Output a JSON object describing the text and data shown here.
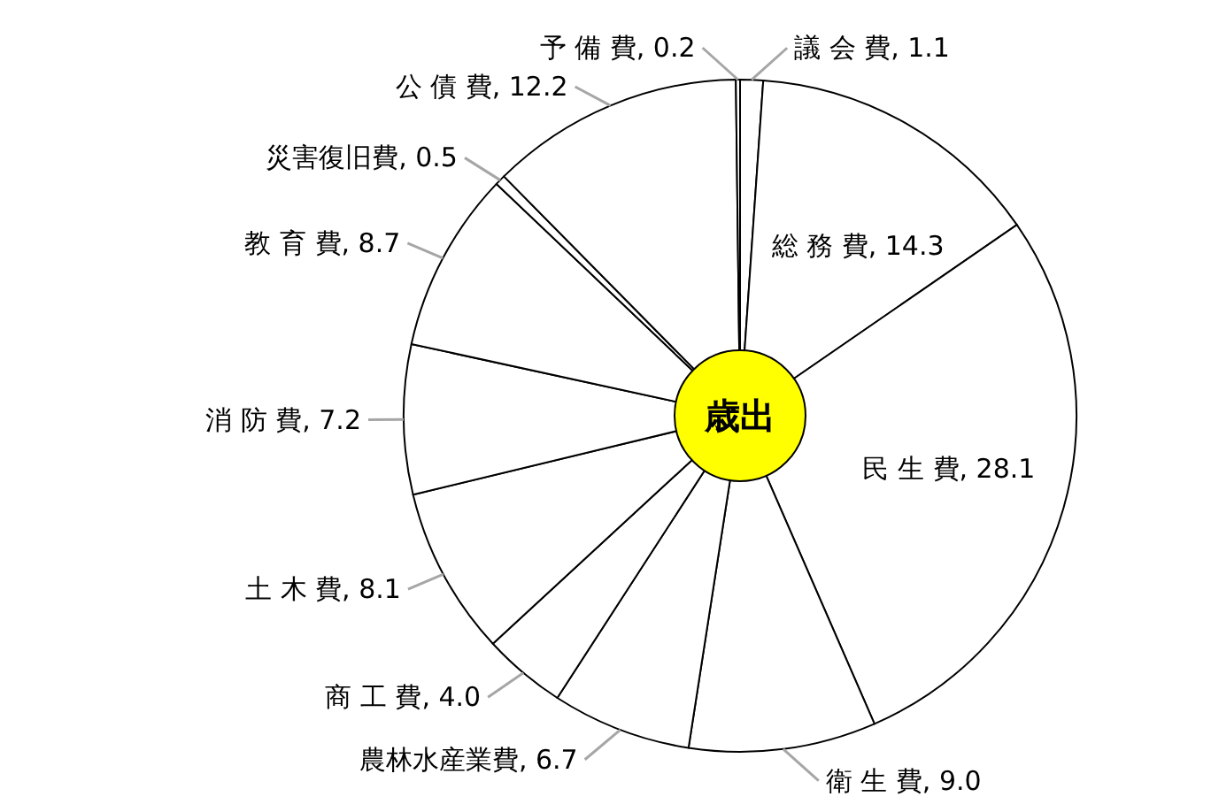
{
  "chart_data": {
    "type": "pie",
    "title": "歳出",
    "categories": [
      "議 会 費",
      "総 務 費",
      "民 生 費",
      "衛 生 費",
      "農林水産業費",
      "商 工 費",
      "土 木 費",
      "消 防 費",
      "教 育 費",
      "災害復旧費",
      "公 債 費",
      "予 備 費"
    ],
    "values": [
      1.1,
      14.3,
      28.1,
      9.0,
      6.7,
      4.0,
      8.1,
      7.2,
      8.7,
      0.5,
      12.2,
      0.2
    ],
    "value_labels": [
      "1.1",
      "14.3",
      "28.1",
      "9.0",
      "6.7",
      "4.0",
      "8.1",
      "7.2",
      "8.7",
      "0.5",
      "12.2",
      "0.2"
    ],
    "colors": [
      "#ffffff",
      "#ffffff",
      "#ffffff",
      "#ffffff",
      "#ffffff",
      "#ffffff",
      "#ffffff",
      "#ffffff",
      "#ffffff",
      "#ffffff",
      "#ffffff",
      "#ffffff"
    ]
  }
}
